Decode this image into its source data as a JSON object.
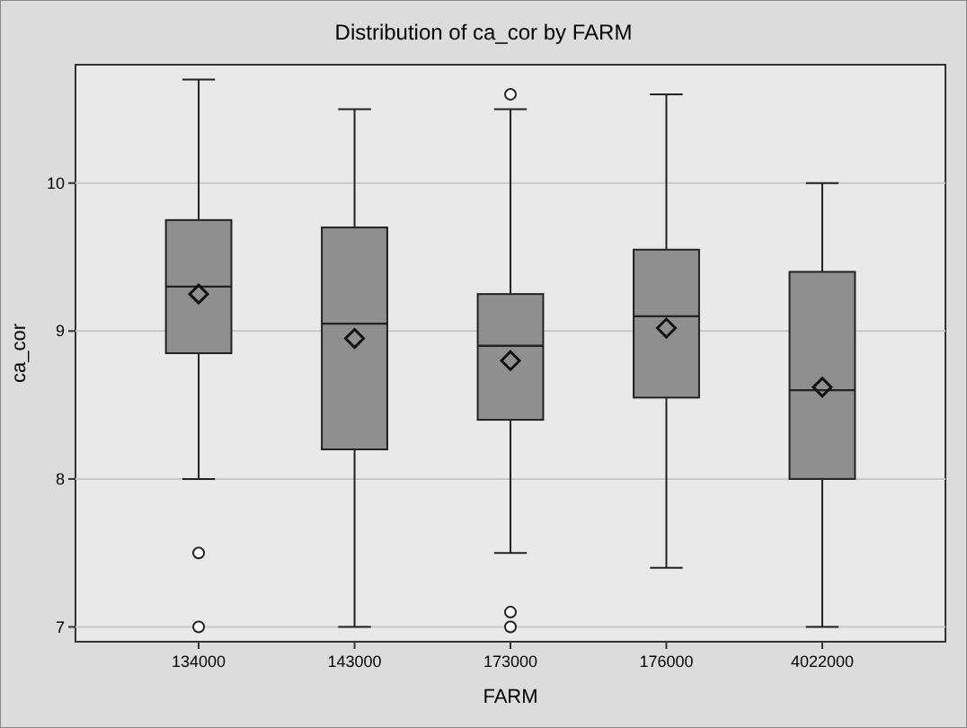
{
  "chart_data": {
    "type": "box",
    "title": "Distribution of  ca_cor  by  FARM",
    "xlabel": "FARM",
    "ylabel": "ca_cor",
    "categories": [
      "134000",
      "143000",
      "173000",
      "176000",
      "4022000"
    ],
    "boxes": [
      {
        "low": 8.0,
        "q1": 8.85,
        "median": 9.3,
        "q3": 9.75,
        "high": 10.7,
        "mean": 9.25,
        "outliers": [
          7.5,
          7.0
        ]
      },
      {
        "low": 7.0,
        "q1": 8.2,
        "median": 9.05,
        "q3": 9.7,
        "high": 10.5,
        "mean": 8.95
      },
      {
        "low": 7.5,
        "q1": 8.4,
        "median": 8.9,
        "q3": 9.25,
        "high": 10.5,
        "mean": 8.8,
        "outliers": [
          10.6,
          7.1,
          7.0
        ]
      },
      {
        "low": 7.4,
        "q1": 8.55,
        "median": 9.1,
        "q3": 9.55,
        "high": 10.6,
        "mean": 9.02
      },
      {
        "low": 7.0,
        "q1": 8.0,
        "median": 8.6,
        "q3": 9.4,
        "high": 10.0,
        "mean": 8.62
      }
    ],
    "color": "#8f8f8f",
    "ylim": [
      6.9,
      10.8
    ],
    "yticks": [
      7,
      8,
      9,
      10
    ],
    "grid": "y"
  }
}
